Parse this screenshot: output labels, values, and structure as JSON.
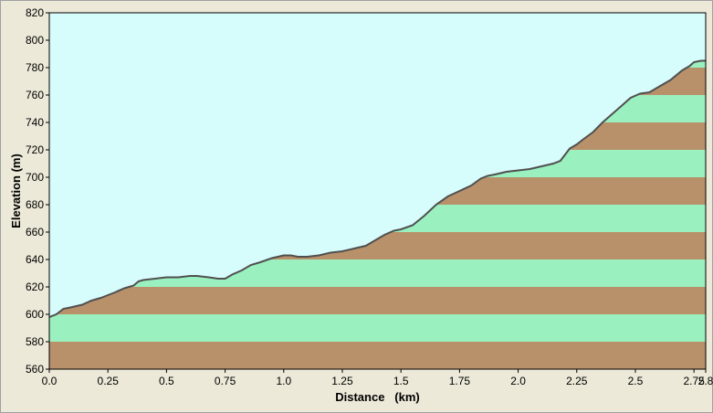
{
  "chart_data": {
    "type": "area",
    "xlabel": "Distance   (km)",
    "ylabel": "Elevation (m)",
    "xlim": [
      0,
      2.8
    ],
    "ylim": [
      560,
      820
    ],
    "x_ticks": [
      "0.0",
      "0.25",
      "0.5",
      "0.75",
      "1.0",
      "1.25",
      "1.5",
      "1.75",
      "2.0",
      "2.25",
      "2.5",
      "2.75",
      "2.8"
    ],
    "x_tick_values": [
      0,
      0.25,
      0.5,
      0.75,
      1.0,
      1.25,
      1.5,
      1.75,
      2.0,
      2.25,
      2.5,
      2.75,
      2.8
    ],
    "y_ticks": [
      560,
      580,
      600,
      620,
      640,
      660,
      680,
      700,
      720,
      740,
      760,
      780,
      800,
      820
    ],
    "band_colors": [
      "#b8916a",
      "#9af0be"
    ],
    "sky_color": "#d7fcfc",
    "line_color": "#505050",
    "x": [
      0.0,
      0.03,
      0.06,
      0.09,
      0.14,
      0.18,
      0.22,
      0.25,
      0.28,
      0.32,
      0.36,
      0.38,
      0.4,
      0.45,
      0.5,
      0.55,
      0.6,
      0.63,
      0.68,
      0.72,
      0.75,
      0.78,
      0.82,
      0.86,
      0.9,
      0.95,
      1.0,
      1.03,
      1.06,
      1.1,
      1.15,
      1.2,
      1.25,
      1.3,
      1.35,
      1.4,
      1.43,
      1.47,
      1.5,
      1.55,
      1.6,
      1.65,
      1.7,
      1.75,
      1.8,
      1.84,
      1.87,
      1.9,
      1.95,
      2.0,
      2.05,
      2.1,
      2.15,
      2.18,
      2.22,
      2.25,
      2.28,
      2.32,
      2.36,
      2.4,
      2.44,
      2.48,
      2.52,
      2.56,
      2.6,
      2.65,
      2.7,
      2.73,
      2.75,
      2.78,
      2.8
    ],
    "y": [
      598,
      600,
      604,
      605,
      607,
      610,
      612,
      614,
      616,
      619,
      621,
      624,
      625,
      626,
      627,
      627,
      628,
      628,
      627,
      626,
      626,
      629,
      632,
      636,
      638,
      641,
      643,
      643,
      642,
      642,
      643,
      645,
      646,
      648,
      650,
      655,
      658,
      661,
      662,
      665,
      672,
      680,
      686,
      690,
      694,
      699,
      701,
      702,
      704,
      705,
      706,
      708,
      710,
      712,
      721,
      724,
      728,
      733,
      740,
      746,
      752,
      758,
      761,
      762,
      766,
      771,
      778,
      781,
      784,
      785,
      785
    ]
  }
}
